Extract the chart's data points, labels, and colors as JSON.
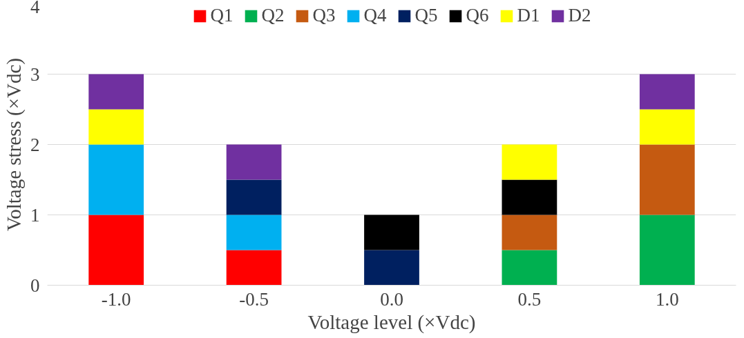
{
  "chart_data": {
    "type": "bar",
    "stacked": true,
    "xlabel": "Voltage level (×Vdc)",
    "ylabel": "Voltage stress (×Vdc)",
    "categories": [
      "-1.0",
      "-0.5",
      "0.0",
      "0.5",
      "1.0"
    ],
    "series": [
      {
        "name": "Q1",
        "color": "#ff0000",
        "values": [
          1,
          0.5,
          null,
          null,
          null
        ]
      },
      {
        "name": "Q2",
        "color": "#00b050",
        "values": [
          null,
          null,
          null,
          0.5,
          1
        ]
      },
      {
        "name": "Q3",
        "color": "#c55a11",
        "values": [
          null,
          null,
          null,
          0.5,
          1
        ]
      },
      {
        "name": "Q4",
        "color": "#00b0f0",
        "values": [
          1,
          0.5,
          null,
          null,
          null
        ]
      },
      {
        "name": "Q5",
        "color": "#002060",
        "values": [
          null,
          0.5,
          0.5,
          null,
          null
        ]
      },
      {
        "name": "Q6",
        "color": "#000000",
        "values": [
          null,
          null,
          0.5,
          0.5,
          null
        ]
      },
      {
        "name": "D1",
        "color": "#ffff00",
        "values": [
          0.5,
          null,
          null,
          0.5,
          0.5
        ]
      },
      {
        "name": "D2",
        "color": "#7030a0",
        "values": [
          0.5,
          0.5,
          null,
          null,
          0.5
        ]
      }
    ],
    "ylim": [
      0,
      4
    ],
    "yticks": [
      0,
      1,
      2,
      3,
      4
    ],
    "grid": "y",
    "legend": "top"
  }
}
